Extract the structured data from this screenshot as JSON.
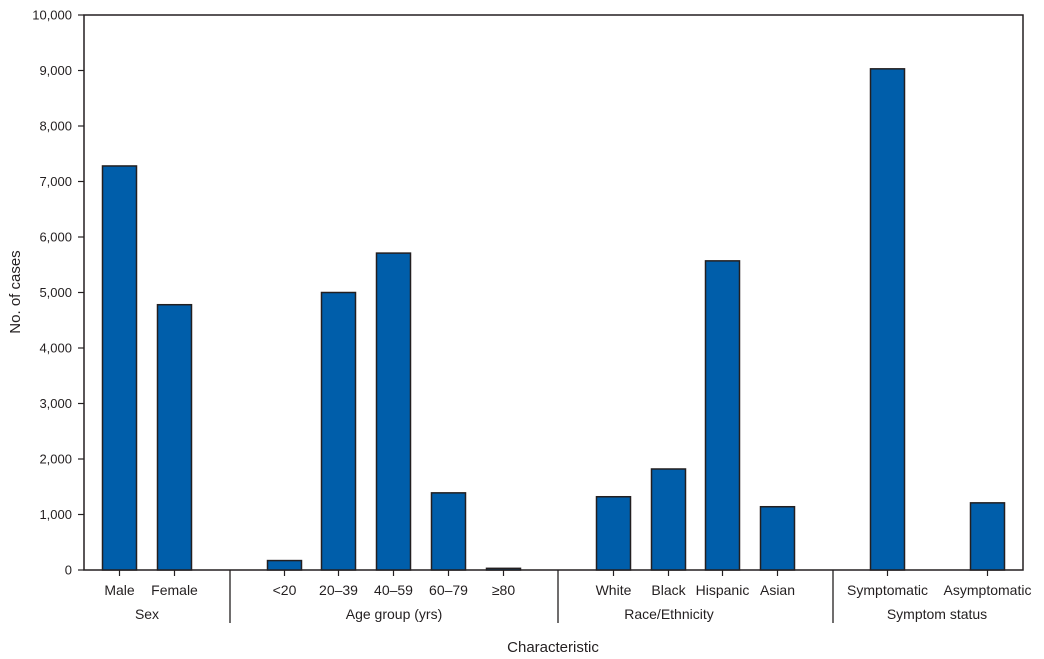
{
  "chart_data": {
    "type": "bar",
    "xlabel": "Characteristic",
    "ylabel": "No. of cases",
    "ylim": [
      0,
      10000
    ],
    "yticks": [
      0,
      1000,
      2000,
      3000,
      4000,
      5000,
      6000,
      7000,
      8000,
      9000,
      10000
    ],
    "ytick_labels": [
      "0",
      "1,000",
      "2,000",
      "3,000",
      "4,000",
      "5,000",
      "6,000",
      "7,000",
      "8,000",
      "9,000",
      "10,000"
    ],
    "bar_color": "#005eaa",
    "grid": false,
    "legend": "none",
    "groups": [
      {
        "label": "Sex",
        "categories": [
          "Male",
          "Female"
        ],
        "values": [
          7280,
          4780
        ]
      },
      {
        "label": "Age group (yrs)",
        "categories": [
          "<20",
          "20–39",
          "40–59",
          "60–79",
          "≥80"
        ],
        "values": [
          170,
          5000,
          5710,
          1390,
          30
        ]
      },
      {
        "label": "Race/Ethnicity",
        "categories": [
          "White",
          "Black",
          "Hispanic",
          "Asian"
        ],
        "values": [
          1320,
          1820,
          5570,
          1140
        ]
      },
      {
        "label": "Symptom status",
        "categories": [
          "Symptomatic",
          "Asymptomatic"
        ],
        "values": [
          9030,
          1210
        ]
      }
    ]
  }
}
